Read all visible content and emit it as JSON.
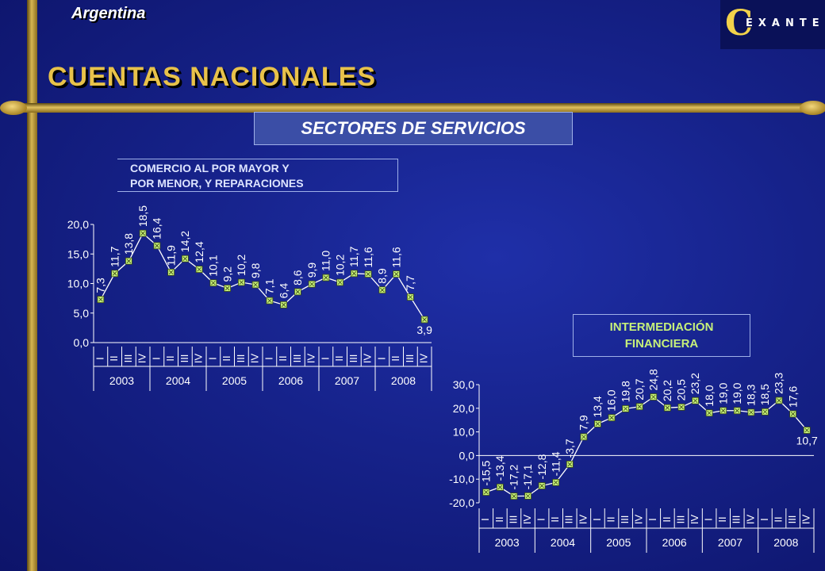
{
  "header": {
    "country": "Argentina",
    "title": "CUENTAS NACIONALES",
    "logo_text": "EXANTE",
    "section": "SECTORES DE SERVICIOS"
  },
  "colors": {
    "background": "#16228a",
    "gold": "#d7b552",
    "title": "#e8c24a",
    "line": "#ffffff",
    "marker": "#c6f07a"
  },
  "chart_data": [
    {
      "type": "line",
      "title_lines": [
        "COMERCIO AL POR MAYOR   Y",
        "POR MENOR, Y REPARACIONES"
      ],
      "yticks": [
        "20,0",
        "15,0",
        "10,0",
        "5,0",
        "0,0"
      ],
      "ylim": [
        0,
        20
      ],
      "quarters": [
        "I",
        "II",
        "III",
        "IV"
      ],
      "years": [
        "2003",
        "2004",
        "2005",
        "2006",
        "2007",
        "2008"
      ],
      "labels": [
        "7,3",
        "11,7",
        "13,8",
        "18,5",
        "16,4",
        "11,9",
        "14,2",
        "12,4",
        "10,1",
        "9,2",
        "10,2",
        "9,8",
        "7,1",
        "6,4",
        "8,6",
        "9,9",
        "11,0",
        "10,2",
        "11,7",
        "11,6",
        "8,9",
        "11,6",
        "7,7",
        "3,9"
      ],
      "values": [
        7.3,
        11.7,
        13.8,
        18.5,
        16.4,
        11.9,
        14.2,
        12.4,
        10.1,
        9.2,
        10.2,
        9.8,
        7.1,
        6.4,
        8.6,
        9.9,
        11.0,
        10.2,
        11.7,
        11.6,
        8.9,
        11.6,
        7.7,
        3.9
      ]
    },
    {
      "type": "line",
      "title_lines": [
        "INTERMEDIACIÓN",
        "FINANCIERA"
      ],
      "yticks": [
        "30,0",
        "20,0",
        "10,0",
        "0,0",
        "-10,0",
        "-20,0"
      ],
      "ylim": [
        -20,
        30
      ],
      "quarters": [
        "I",
        "II",
        "III",
        "IV"
      ],
      "years": [
        "2003",
        "2004",
        "2005",
        "2006",
        "2007",
        "2008"
      ],
      "labels": [
        "-15,5",
        "-13,4",
        "-17,2",
        "-17,1",
        "-12,8",
        "-11,4",
        "-3,7",
        "7,9",
        "13,4",
        "16,0",
        "19,8",
        "20,7",
        "24,8",
        "20,2",
        "20,5",
        "23,2",
        "18,0",
        "19,0",
        "19,0",
        "18,3",
        "18,5",
        "23,3",
        "17,6",
        "10,7"
      ],
      "values": [
        -15.5,
        -13.4,
        -17.2,
        -17.1,
        -12.8,
        -11.4,
        -3.7,
        7.9,
        13.4,
        16.0,
        19.8,
        20.7,
        24.8,
        20.2,
        20.5,
        23.2,
        18.0,
        19.0,
        19.0,
        18.3,
        18.5,
        23.3,
        17.6,
        10.7
      ]
    }
  ]
}
